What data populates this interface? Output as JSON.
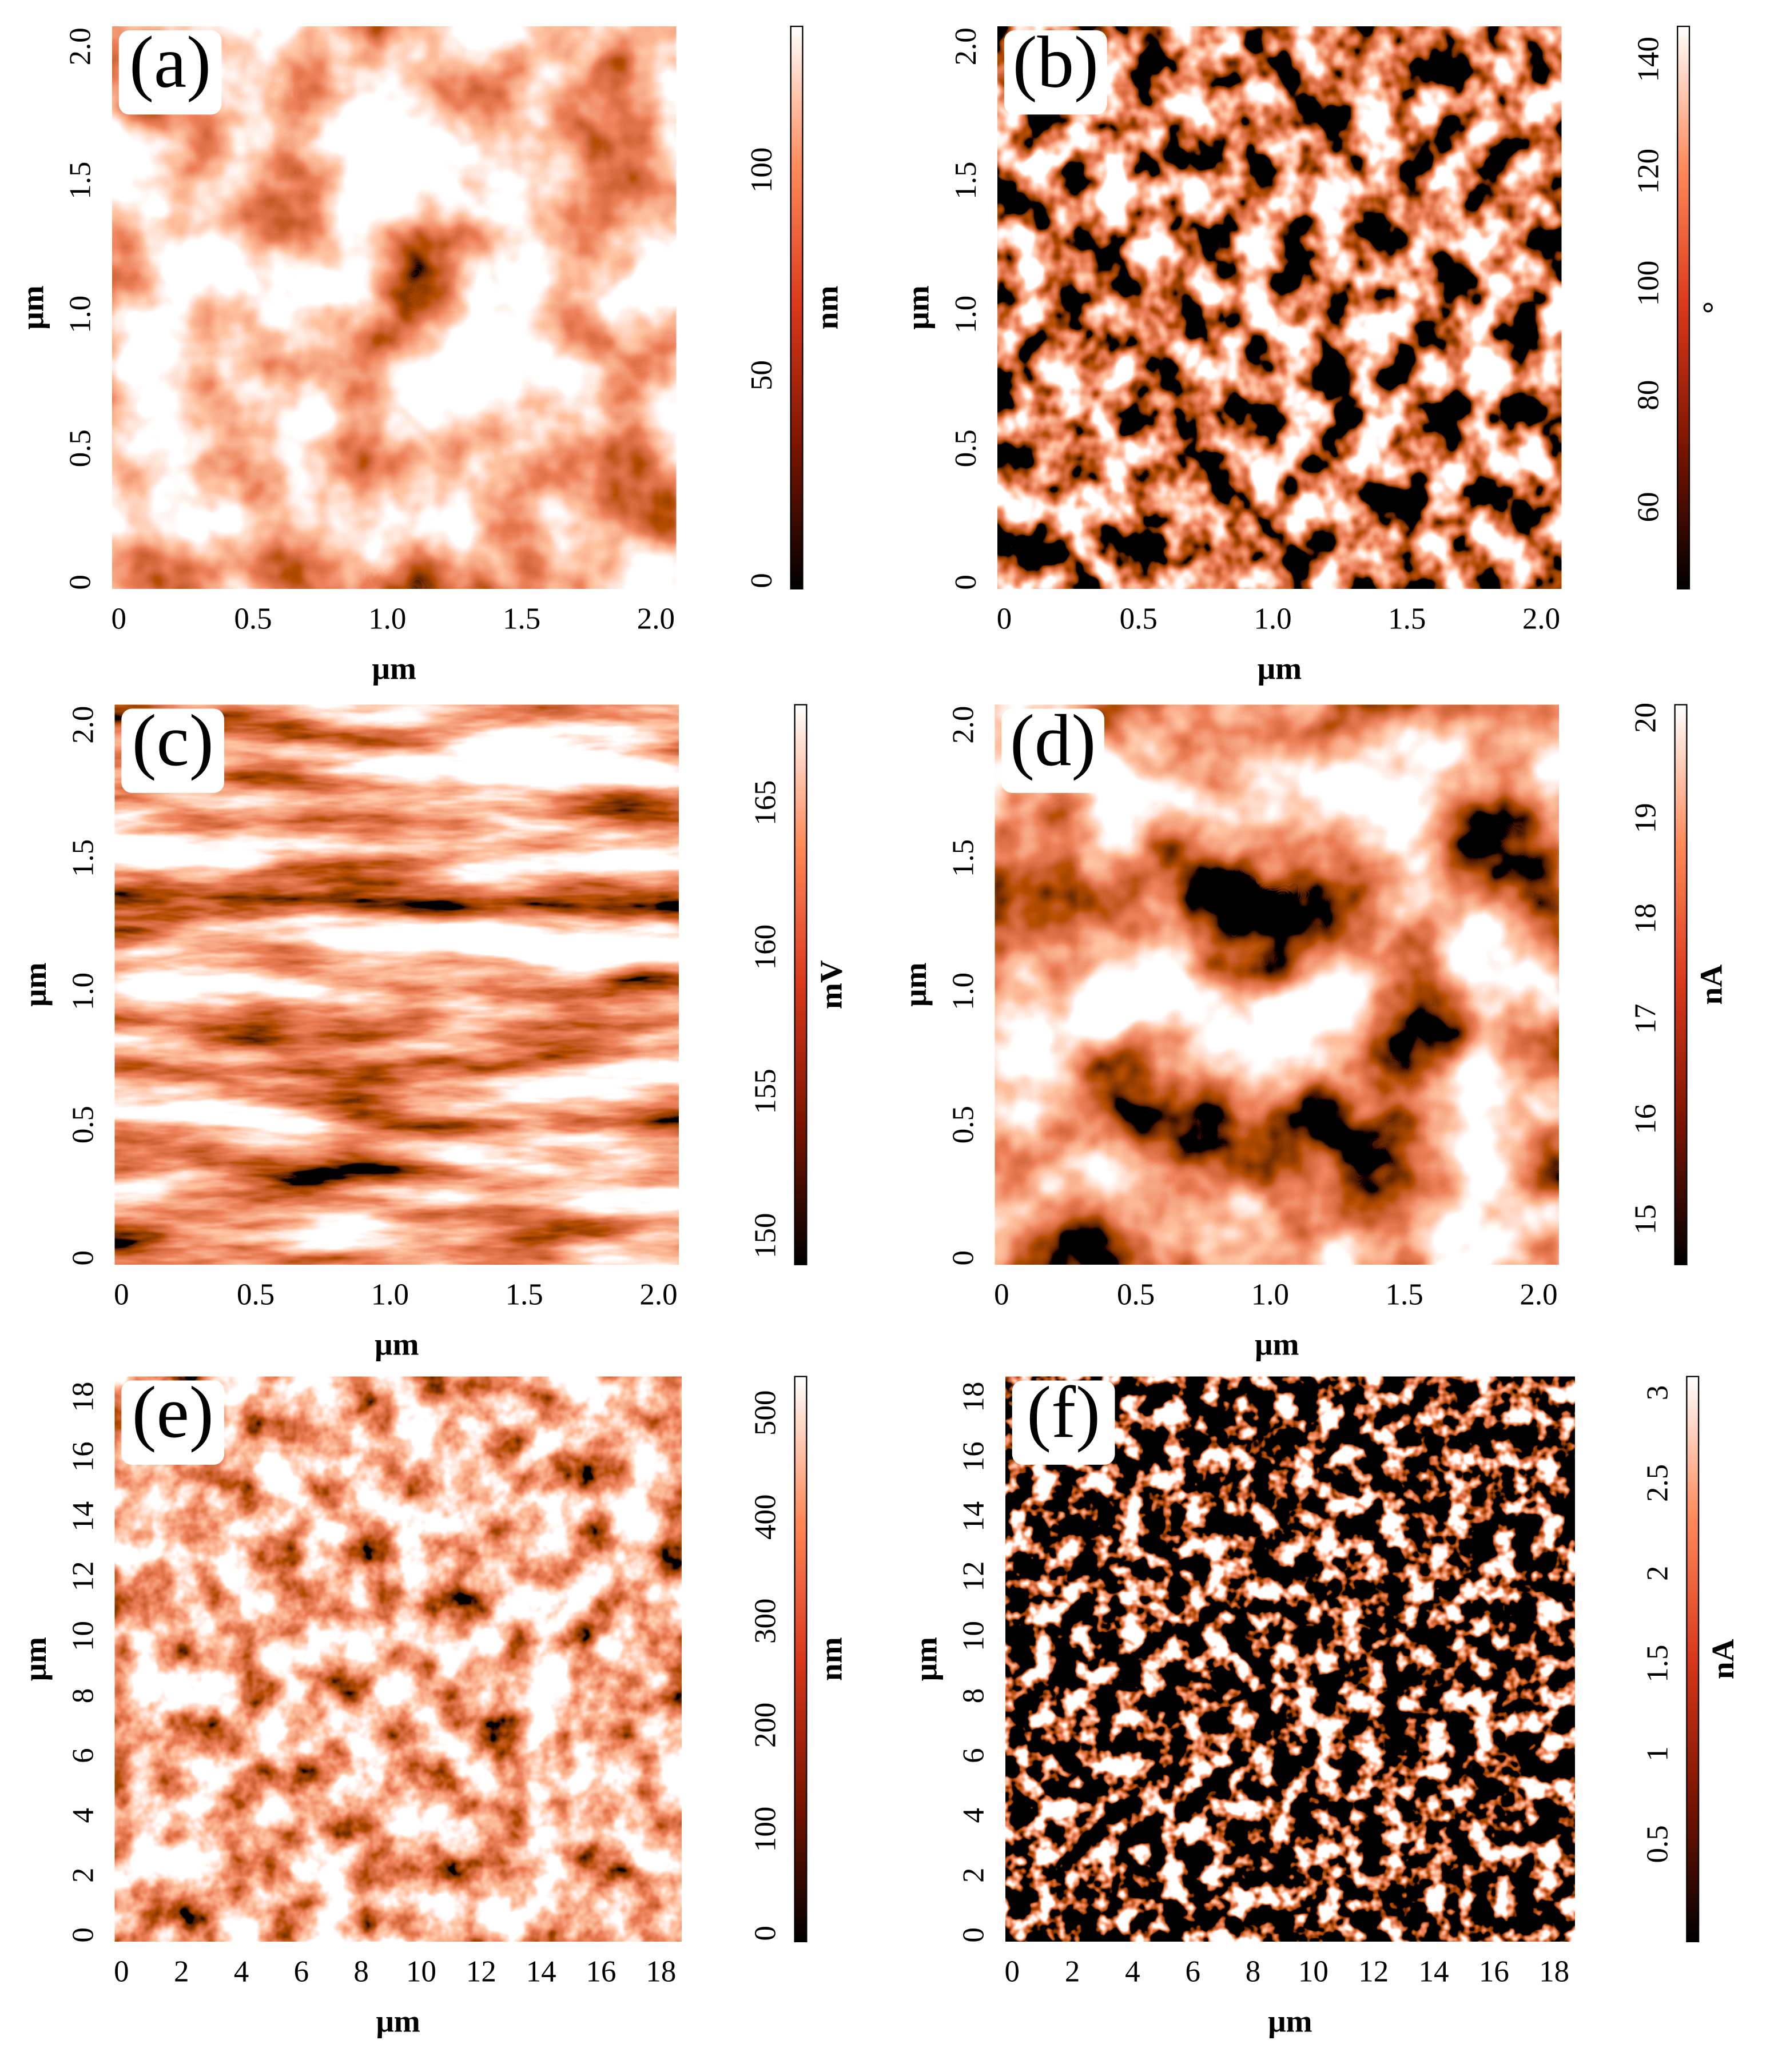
{
  "chart_data": [
    {
      "type": "heatmap",
      "panel_label": "(a)",
      "xlabel": "μm",
      "ylabel": "μm",
      "xlim": [
        0,
        2.1
      ],
      "ylim": [
        0,
        2.1
      ],
      "xticks": [
        0,
        0.5,
        {
          "value": 1,
          "label": "1.0"
        },
        1.5,
        {
          "value": 2,
          "label": "2.0"
        }
      ],
      "yticks": [
        0,
        0.5,
        {
          "value": 1,
          "label": "1.0"
        },
        1.5,
        {
          "value": 2,
          "label": "2.0"
        }
      ],
      "colorbar_label": "nm",
      "clim": [
        -2,
        135
      ],
      "cticks": [
        0,
        50,
        100
      ],
      "colormap": [
        "#000000",
        "#7a1400",
        "#d9381a",
        "#ff8a5a",
        "#ffffff"
      ]
    },
    {
      "type": "heatmap",
      "panel_label": "(b)",
      "xlabel": "μm",
      "ylabel": "μm",
      "xlim": [
        0,
        2.1
      ],
      "ylim": [
        0,
        2.1
      ],
      "xticks": [
        0,
        0.5,
        {
          "value": 1,
          "label": "1.0"
        },
        1.5,
        {
          "value": 2,
          "label": "2.0"
        }
      ],
      "yticks": [
        0,
        0.5,
        {
          "value": 1,
          "label": "1.0"
        },
        1.5,
        {
          "value": 2,
          "label": "2.0"
        }
      ],
      "colorbar_label": "°",
      "clim": [
        45.4,
        145.9
      ],
      "cticks": [
        60,
        80,
        100,
        120,
        140
      ],
      "colormap": [
        "#000000",
        "#7a1400",
        "#d9381a",
        "#ff8a5a",
        "#ffffff"
      ]
    },
    {
      "type": "heatmap",
      "panel_label": "(c)",
      "xlabel": "μm",
      "ylabel": "μm",
      "xlim": [
        0,
        2.1
      ],
      "ylim": [
        0,
        2.1
      ],
      "xticks": [
        0,
        0.5,
        {
          "value": 1,
          "label": "1.0"
        },
        1.5,
        {
          "value": 2,
          "label": "2.0"
        }
      ],
      "yticks": [
        0,
        0.5,
        {
          "value": 1,
          "label": "1.0"
        },
        1.5,
        {
          "value": 2,
          "label": "2.0"
        }
      ],
      "colorbar_label": "mV",
      "clim": [
        149,
        168.4
      ],
      "cticks": [
        150,
        155,
        160,
        165
      ],
      "colormap": [
        "#000000",
        "#7a1400",
        "#d9381a",
        "#ff8a5a",
        "#ffffff"
      ]
    },
    {
      "type": "heatmap",
      "panel_label": "(d)",
      "xlabel": "μm",
      "ylabel": "μm",
      "xlim": [
        0,
        2.1
      ],
      "ylim": [
        0,
        2.1
      ],
      "xticks": [
        0,
        0.5,
        {
          "value": 1,
          "label": "1.0"
        },
        1.5,
        {
          "value": 2,
          "label": "2.0"
        }
      ],
      "yticks": [
        0,
        0.5,
        {
          "value": 1,
          "label": "1.0"
        },
        1.5,
        {
          "value": 2,
          "label": "2.0"
        }
      ],
      "colorbar_label": "nA",
      "clim": [
        14.55,
        20.13
      ],
      "cticks": [
        15,
        16,
        17,
        18,
        19,
        20
      ],
      "colormap": [
        "#000000",
        "#7a1400",
        "#d9381a",
        "#ff8a5a",
        "#ffffff"
      ]
    },
    {
      "type": "heatmap",
      "panel_label": "(e)",
      "xlabel": "μm",
      "ylabel": "μm",
      "xlim": [
        0,
        18.9
      ],
      "ylim": [
        0,
        18.9
      ],
      "xticks": [
        0,
        2,
        4,
        6,
        8,
        10,
        12,
        14,
        16,
        18
      ],
      "yticks": [
        0,
        2,
        4,
        6,
        8,
        10,
        12,
        14,
        16,
        18
      ],
      "colorbar_label": "nm",
      "clim": [
        -8,
        535
      ],
      "cticks": [
        0,
        100,
        200,
        300,
        400,
        500
      ],
      "colormap": [
        "#000000",
        "#7a1400",
        "#d9381a",
        "#ff8a5a",
        "#ffffff"
      ]
    },
    {
      "type": "heatmap",
      "panel_label": "(f)",
      "xlabel": "μm",
      "ylabel": "μm",
      "xlim": [
        0,
        18.9
      ],
      "ylim": [
        0,
        18.9
      ],
      "xticks": [
        0,
        2,
        4,
        6,
        8,
        10,
        12,
        14,
        16,
        18
      ],
      "yticks": [
        0,
        2,
        4,
        6,
        8,
        10,
        12,
        14,
        16,
        18
      ],
      "colorbar_label": "nA",
      "clim": [
        -0.04,
        3.09
      ],
      "cticks": [
        0.5,
        1.0,
        1.5,
        2.0,
        2.5,
        3.0
      ],
      "colormap": [
        "#000000",
        "#7a1400",
        "#d9381a",
        "#ff8a5a",
        "#ffffff"
      ]
    }
  ]
}
